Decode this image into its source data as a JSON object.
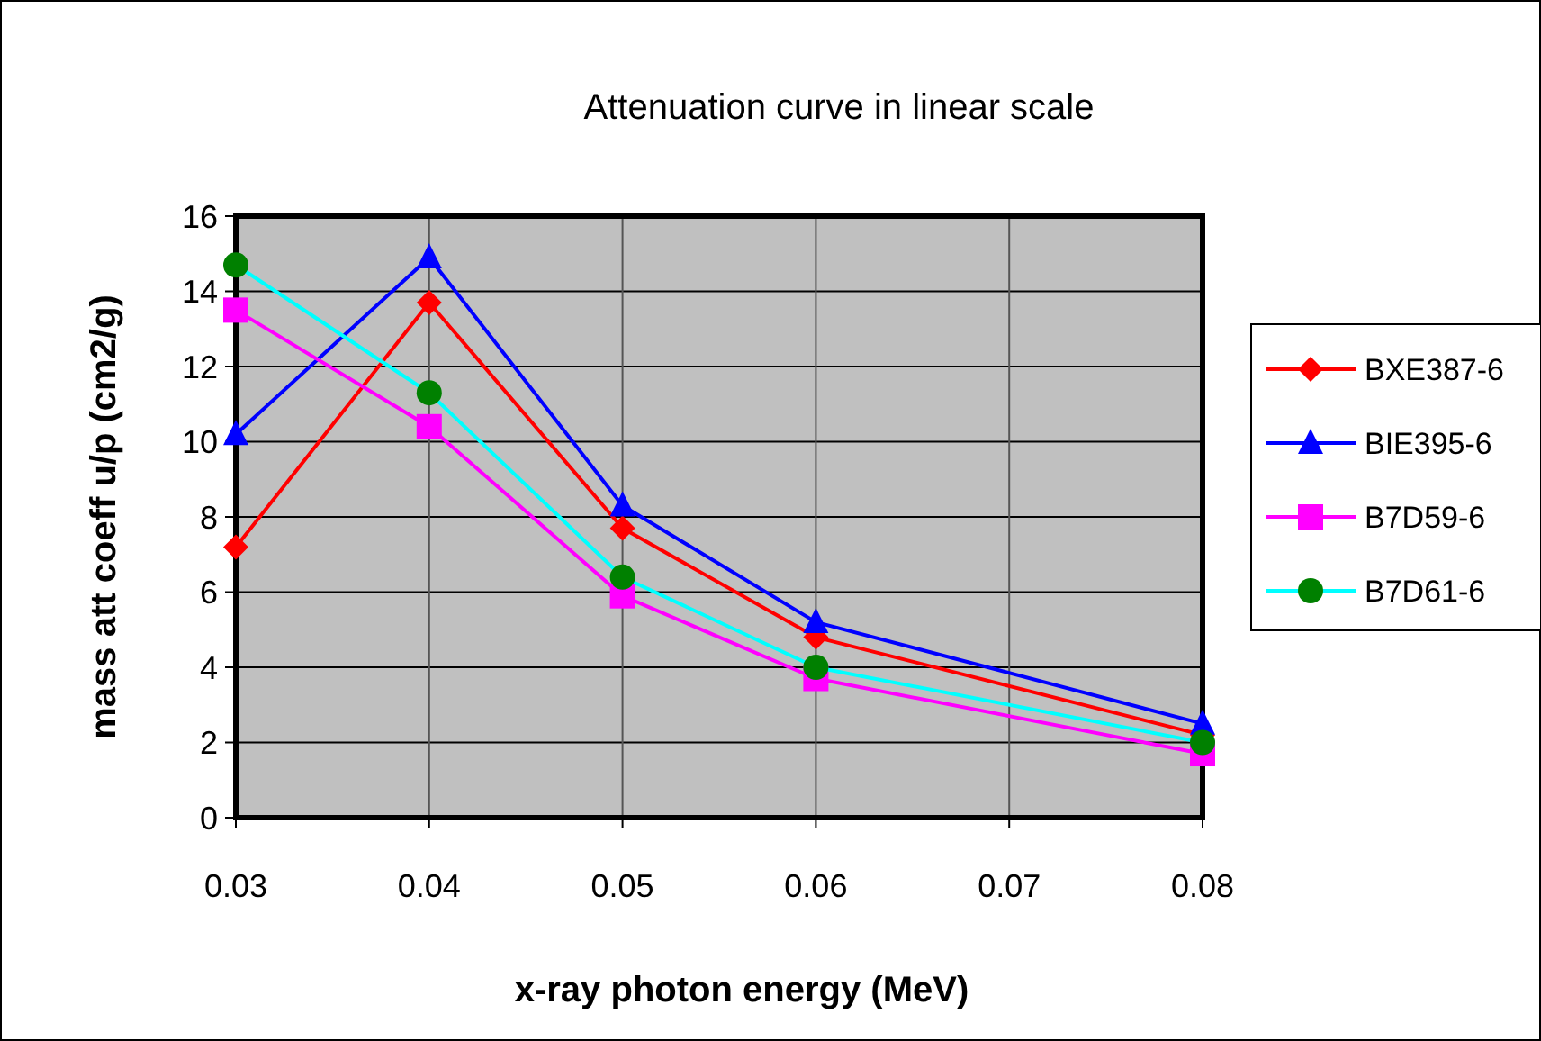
{
  "chart_data": {
    "type": "line",
    "title": "Attenuation curve in linear scale",
    "xlabel": "x-ray photon energy (MeV)",
    "ylabel": "mass att coeff u/p (cm2/g)",
    "x": [
      0.03,
      0.04,
      0.05,
      0.06,
      0.08
    ],
    "xlim": [
      0.03,
      0.08
    ],
    "xticks": [
      0.03,
      0.04,
      0.05,
      0.06,
      0.07,
      0.08
    ],
    "ylim": [
      0,
      16
    ],
    "yticks": [
      0,
      2,
      4,
      6,
      8,
      10,
      12,
      14,
      16
    ],
    "grid": true,
    "legend": "right",
    "series": [
      {
        "name": "BXE387-6",
        "color": "#ff0000",
        "marker": "diamond",
        "values": [
          7.2,
          13.7,
          7.7,
          4.8,
          2.2
        ]
      },
      {
        "name": "BIE395-6",
        "color": "#0000ff",
        "marker": "triangle",
        "values": [
          10.2,
          14.9,
          8.3,
          5.2,
          2.5
        ]
      },
      {
        "name": "B7D59-6",
        "color": "#ff00ff",
        "marker": "square",
        "values": [
          13.5,
          10.4,
          5.9,
          3.7,
          1.7
        ]
      },
      {
        "name": "B7D61-6",
        "color": "#00ffff",
        "colors": [
          "#008000",
          "#008000",
          "#008000",
          "#008000",
          "#008000"
        ],
        "marker": "circle",
        "values": [
          14.7,
          11.3,
          6.4,
          4.0,
          2.0
        ]
      }
    ]
  }
}
